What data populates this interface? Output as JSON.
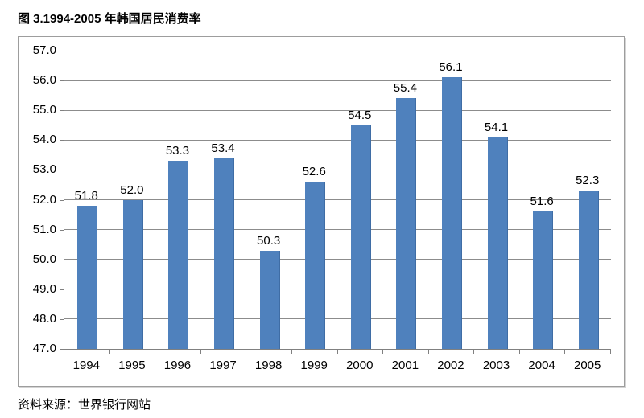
{
  "page": {
    "title": "图 3.1994-2005 年韩国居民消费率",
    "source_note": "资料来源：世界银行网站"
  },
  "chart_data": {
    "type": "bar",
    "title": "图 3.1994-2005 年韩国居民消费率",
    "categories": [
      "1994",
      "1995",
      "1996",
      "1997",
      "1998",
      "1999",
      "2000",
      "2001",
      "2002",
      "2003",
      "2004",
      "2005"
    ],
    "values": [
      51.8,
      52.0,
      53.3,
      53.4,
      50.3,
      52.6,
      54.5,
      55.4,
      56.1,
      54.1,
      51.6,
      52.3
    ],
    "value_labels": [
      "51.8",
      "52.0",
      "53.3",
      "53.4",
      "50.3",
      "52.6",
      "54.5",
      "55.4",
      "56.1",
      "54.1",
      "51.6",
      "52.3"
    ],
    "xlabel": "",
    "ylabel": "",
    "ylim": [
      47.0,
      57.0
    ],
    "ytick_step": 1.0,
    "ytick_labels": [
      "47.0",
      "48.0",
      "49.0",
      "50.0",
      "51.0",
      "52.0",
      "53.0",
      "54.0",
      "55.0",
      "56.0",
      "57.0"
    ],
    "grid": true,
    "legend": false,
    "data_labels_shown": true,
    "colors": {
      "bar": "#4f81bd",
      "gridline": "#8c8c8c",
      "axis": "#808080",
      "frame_border": "#9d9d9d",
      "text": "#000000"
    },
    "source": "资料来源：世界银行网站"
  }
}
